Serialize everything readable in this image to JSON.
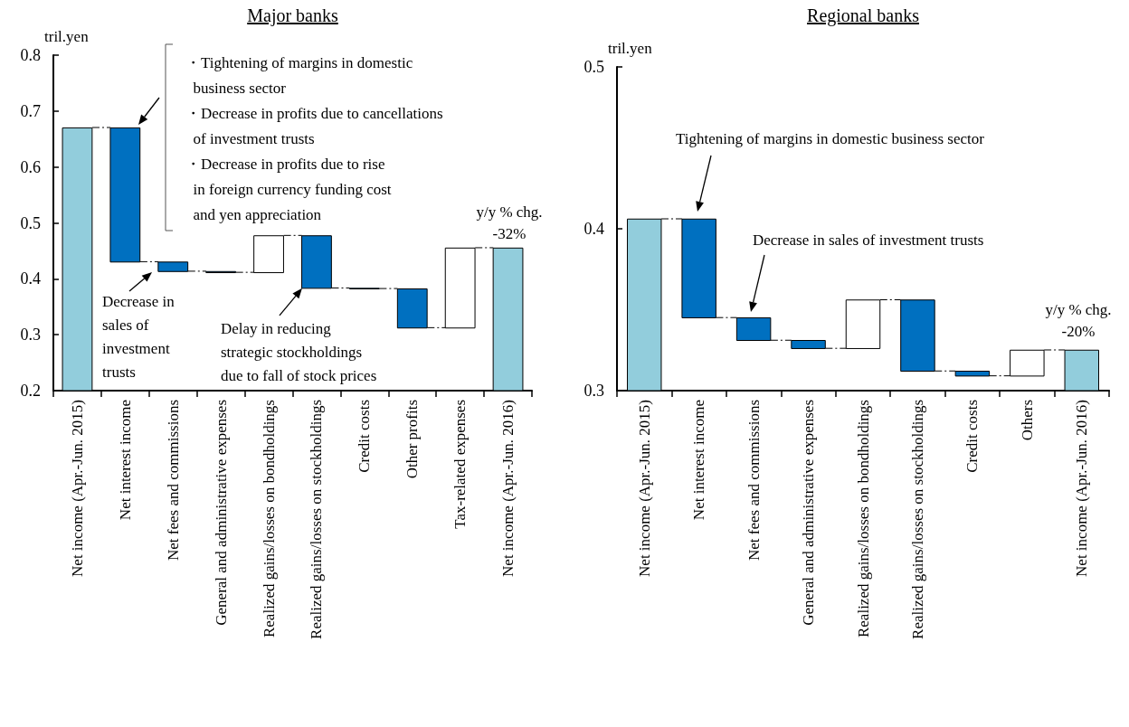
{
  "chart_data": [
    {
      "type": "bar",
      "title": "Major banks",
      "ylabel": "tril.yen",
      "categories": [
        "Net income (Apr.-Jun. 2015)",
        "Net interest income",
        "Net fees and commissions",
        "General and administrative expenses",
        "Realized gains/losses on bondholdings",
        "Realized gains/losses on stockholdings",
        "Credit costs",
        "Other profits",
        "Tax-related expenses",
        "Net income (Apr.-Jun. 2016)"
      ],
      "values": [
        0.67,
        -0.24,
        -0.017,
        -0.002,
        0.066,
        -0.094,
        -0.001,
        -0.07,
        0.143,
        0.455
      ],
      "base": [
        null,
        0.67,
        0.43,
        0.413,
        0.411,
        0.477,
        0.383,
        0.382,
        0.312,
        null
      ],
      "colors": [
        "#92cddc",
        "#0070c0",
        "#0070c0",
        "#0070c0",
        "#ffffff",
        "#0070c0",
        "#0070c0",
        "#0070c0",
        "#ffffff",
        "#92cddc"
      ],
      "ylim": [
        0.2,
        0.8
      ],
      "yticks": [
        0.2,
        0.3,
        0.4,
        0.5,
        0.6,
        0.7,
        0.8
      ],
      "annotations": [
        "・Tightening of margins in domestic\n  business sector\n・Decrease in profits due to cancellations\n  of investment trusts\n・Decrease in profits due to rise\n  in foreign currency funding cost\n  and yen appreciation",
        "Decrease in\nsales of\ninvestment\ntrusts",
        {
          "text": "Delay in reducing\nstrategic stockholdings\ndue to fall of stock prices",
          "x": "Realized gains/losses on stockholdings",
          "y": 0.383
        },
        "y/y % chg.\n-32%"
      ]
    },
    {
      "type": "bar",
      "title": "Regional banks",
      "ylabel": "tril.yen",
      "categories": [
        "Net income (Apr.-Jun. 2015)",
        "Net interest income",
        "Net fees and commissions",
        "General and administrative expenses",
        "Realized gains/losses on bondholdings",
        "Realized gains/losses on stockholdings",
        "Credit costs",
        "Others",
        "Net income (Apr.-Jun. 2016)"
      ],
      "values": [
        0.406,
        -0.061,
        -0.014,
        -0.005,
        0.03,
        -0.044,
        -0.003,
        0.016,
        0.325
      ],
      "base": [
        null,
        0.406,
        0.345,
        0.331,
        0.326,
        0.356,
        0.312,
        0.309,
        null
      ],
      "colors": [
        "#92cddc",
        "#0070c0",
        "#0070c0",
        "#0070c0",
        "#ffffff",
        "#0070c0",
        "#0070c0",
        "#ffffff",
        "#92cddc"
      ],
      "ylim": [
        0.3,
        0.5
      ],
      "yticks": [
        0.3,
        0.4,
        0.5
      ],
      "annotations": [
        "Tightening of margins in domestic business sector",
        "Decrease in sales of investment trusts",
        "y/y % chg.\n-20%"
      ]
    }
  ]
}
